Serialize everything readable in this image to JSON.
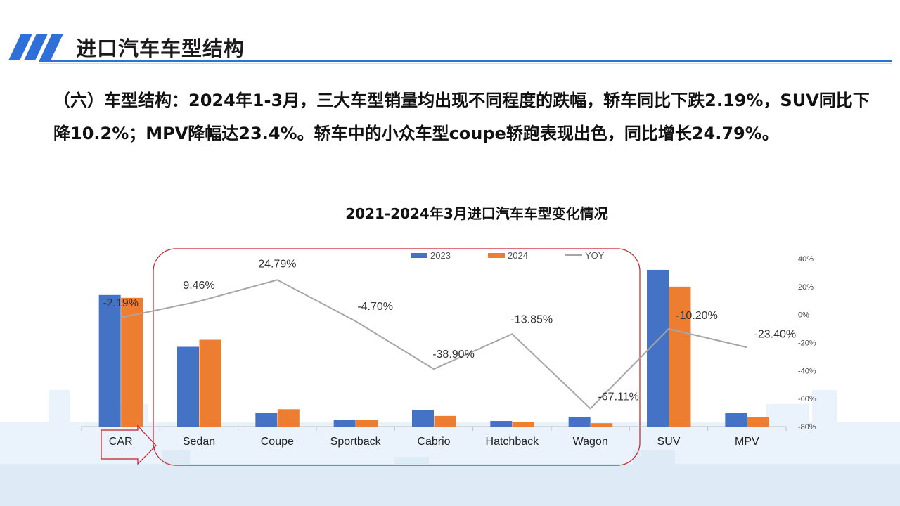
{
  "page": {
    "title": "进口汽车车型结构",
    "paragraph": "（六）车型结构：2024年1-3月，三大车型销量均出现不同程度的跌幅，轿车同比下跌2.19%，SUV同比下降10.2%；MPV降幅达23.4%。轿车中的小众车型coupe轿跑表现出色，同比增长24.79%。"
  },
  "colors": {
    "accent_blue": "#2f6fd8",
    "bar_2023": "#4472c4",
    "bar_2024": "#ed7d31",
    "yoy_line": "#a6a6a6",
    "highlight_border": "#c0202a"
  },
  "chart_data": {
    "type": "bar",
    "title": "2021-2024年3月进口汽车车型变化情况",
    "categories": [
      "CAR",
      "Sedan",
      "Coupe",
      "Sportback",
      "Cabrio",
      "Hatchback",
      "Wagon",
      "SUV",
      "MPV"
    ],
    "series": [
      {
        "name": "2023",
        "values": [
          47,
          28.5,
          5,
          2.5,
          6,
          2,
          3.5,
          56,
          4.8
        ]
      },
      {
        "name": "2024",
        "values": [
          46,
          31,
          6.2,
          2.4,
          3.8,
          1.6,
          1.2,
          50,
          3.4
        ]
      },
      {
        "name": "YOY",
        "axis": "right",
        "values": [
          -2.19,
          9.46,
          24.79,
          -4.7,
          -38.9,
          -13.85,
          -67.11,
          -10.2,
          -23.4
        ]
      }
    ],
    "yoy_labels": [
      "-2.19%",
      "9.46%",
      "24.79%",
      "-4.70%",
      "-38.90%",
      "-13.85%",
      "-67.11%",
      "-10.20%",
      "-23.40%"
    ],
    "left_ylim": [
      0,
      60
    ],
    "right_ylim": [
      -80,
      40
    ],
    "right_ticks": [
      "40%",
      "20%",
      "0%",
      "-20%",
      "-40%",
      "-60%",
      "-80%"
    ],
    "right_tick_values": [
      40,
      20,
      0,
      -20,
      -40,
      -60,
      -80
    ],
    "legend": [
      "2023",
      "2024",
      "YOY"
    ],
    "legend_position": "top",
    "grid": false
  }
}
